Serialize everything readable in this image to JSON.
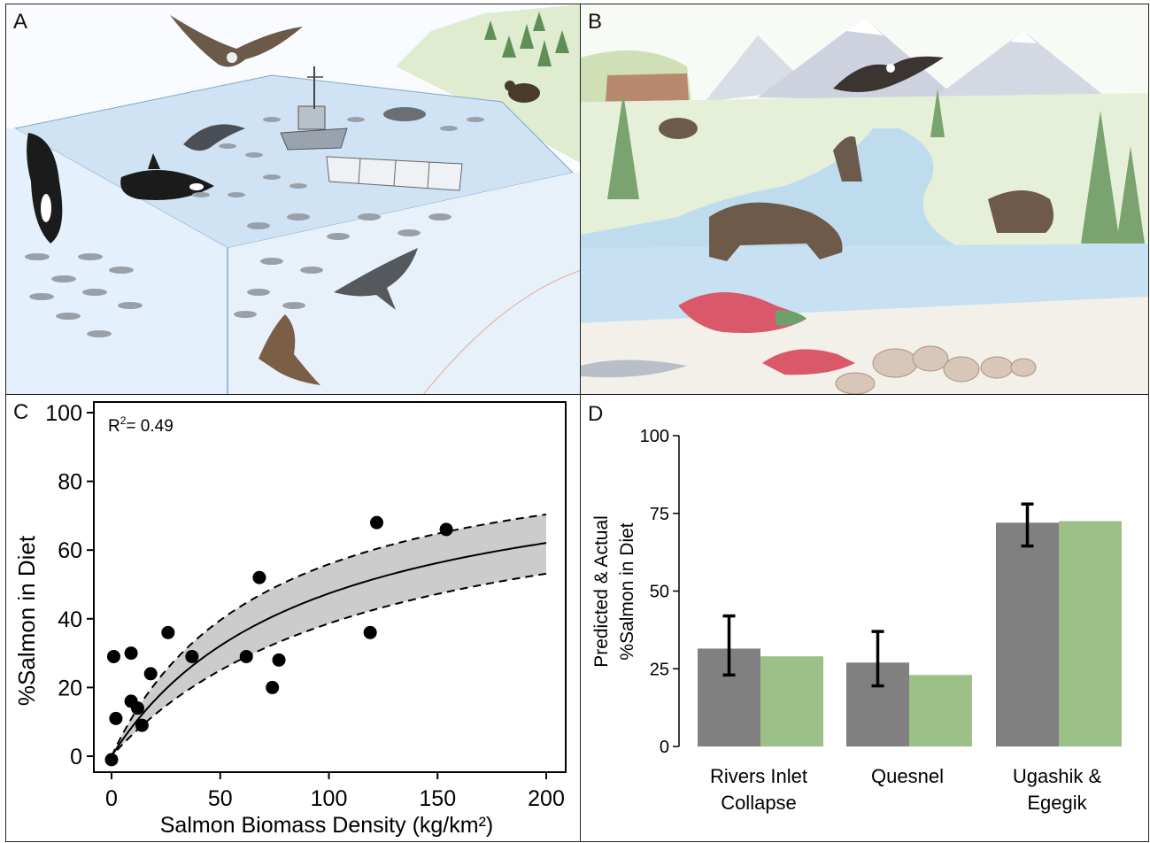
{
  "panels": {
    "a": {
      "letter": "A"
    },
    "b": {
      "letter": "B"
    },
    "c": {
      "letter": "C"
    },
    "d": {
      "letter": "D"
    }
  },
  "illustrations": {
    "a": {
      "subjects": [
        "eagle-icon",
        "orca-icon",
        "dolphin-icon",
        "fishing-boat-icon",
        "net-icon",
        "seal-icon",
        "shark-icon",
        "sea-lion-icon",
        "bear-icon",
        "salmon-icon",
        "forest-icon"
      ]
    },
    "b": {
      "subjects": [
        "mountain-icon",
        "eagle-icon",
        "wolf-icon",
        "grizzly-bear-icon",
        "sockeye-salmon-icon",
        "river-icon",
        "spruce-tree-icon",
        "rock-icon"
      ]
    }
  },
  "colors": {
    "points": "#000000",
    "band": "#cccccc",
    "predicted_bar": "#808080",
    "actual_bar": "#9dbf88",
    "error_bar": "#000000"
  },
  "chart_data": [
    {
      "type": "scatter",
      "panel": "C",
      "xlabel": "Salmon Biomass Density (kg/km²)",
      "ylabel": "%Salmon in Diet",
      "xlim": [
        0,
        200
      ],
      "ylim": [
        0,
        100
      ],
      "xticks": [
        0,
        50,
        100,
        150,
        200
      ],
      "yticks": [
        0,
        20,
        40,
        60,
        80,
        100
      ],
      "annotation": {
        "text_main": "R",
        "text_sup": "2",
        "text_tail": "= 0.49"
      },
      "points": [
        {
          "x": 0,
          "y": -1
        },
        {
          "x": 1,
          "y": 29
        },
        {
          "x": 2,
          "y": 11
        },
        {
          "x": 9,
          "y": 30
        },
        {
          "x": 9,
          "y": 16
        },
        {
          "x": 12,
          "y": 14
        },
        {
          "x": 14,
          "y": 9
        },
        {
          "x": 18,
          "y": 24
        },
        {
          "x": 26,
          "y": 36
        },
        {
          "x": 37,
          "y": 29
        },
        {
          "x": 62,
          "y": 29
        },
        {
          "x": 68,
          "y": 52
        },
        {
          "x": 74,
          "y": 20
        },
        {
          "x": 77,
          "y": 28
        },
        {
          "x": 119,
          "y": 36
        },
        {
          "x": 122,
          "y": 68
        },
        {
          "x": 154,
          "y": 66
        }
      ],
      "fit": {
        "vmax": 90,
        "k": 90
      },
      "band": {
        "upper": {
          "vmax": 95,
          "k": 70
        },
        "lower": {
          "vmax": 85,
          "k": 120
        }
      },
      "grid": false
    },
    {
      "type": "bar",
      "panel": "D",
      "ylabel_line1": "Predicted & Actual",
      "ylabel_line2": "%Salmon in Diet",
      "ylim": [
        0,
        100
      ],
      "yticks": [
        0,
        25,
        50,
        75,
        100
      ],
      "categories": [
        {
          "line1": "Rivers Inlet",
          "line2": "Collapse"
        },
        {
          "line1": "Quesnel",
          "line2": ""
        },
        {
          "line1": "Ugashik &",
          "line2": "Egegik"
        }
      ],
      "series": [
        {
          "values": [
            31.5,
            27,
            72
          ],
          "errors": [
            [
              23,
              42
            ],
            [
              19.5,
              37
            ],
            [
              64.5,
              78
            ]
          ]
        },
        {
          "values": [
            29,
            23,
            72.5
          ]
        }
      ],
      "grid": false
    }
  ]
}
